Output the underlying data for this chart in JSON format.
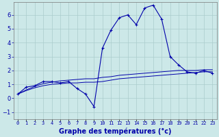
{
  "xlabel": "Graphe des températures (°c)",
  "background_color": "#cce8e8",
  "grid_color": "#aacccc",
  "line_color": "#0000aa",
  "hours": [
    0,
    1,
    2,
    3,
    4,
    5,
    6,
    7,
    8,
    9,
    10,
    11,
    12,
    13,
    14,
    15,
    16,
    17,
    18,
    19,
    20,
    21,
    22,
    23
  ],
  "temps_main": [
    0.3,
    0.8,
    0.9,
    1.2,
    1.2,
    1.1,
    1.2,
    0.7,
    0.3,
    -0.6,
    3.6,
    4.9,
    5.8,
    6.0,
    5.3,
    6.5,
    6.7,
    5.7,
    3.0,
    2.4,
    1.9,
    1.8,
    2.0,
    1.8
  ],
  "temps_line2": [
    0.3,
    0.55,
    0.75,
    0.9,
    1.0,
    1.05,
    1.1,
    1.1,
    1.15,
    1.15,
    1.2,
    1.3,
    1.4,
    1.45,
    1.5,
    1.55,
    1.6,
    1.65,
    1.7,
    1.75,
    1.8,
    1.85,
    1.9,
    1.9
  ],
  "temps_line3": [
    0.3,
    0.6,
    0.85,
    1.05,
    1.15,
    1.25,
    1.3,
    1.35,
    1.4,
    1.4,
    1.5,
    1.55,
    1.65,
    1.7,
    1.75,
    1.8,
    1.85,
    1.9,
    1.95,
    2.0,
    2.0,
    2.0,
    2.05,
    2.05
  ],
  "ylim": [
    -1.5,
    6.9
  ],
  "yticks": [
    -1,
    0,
    1,
    2,
    3,
    4,
    5,
    6
  ]
}
